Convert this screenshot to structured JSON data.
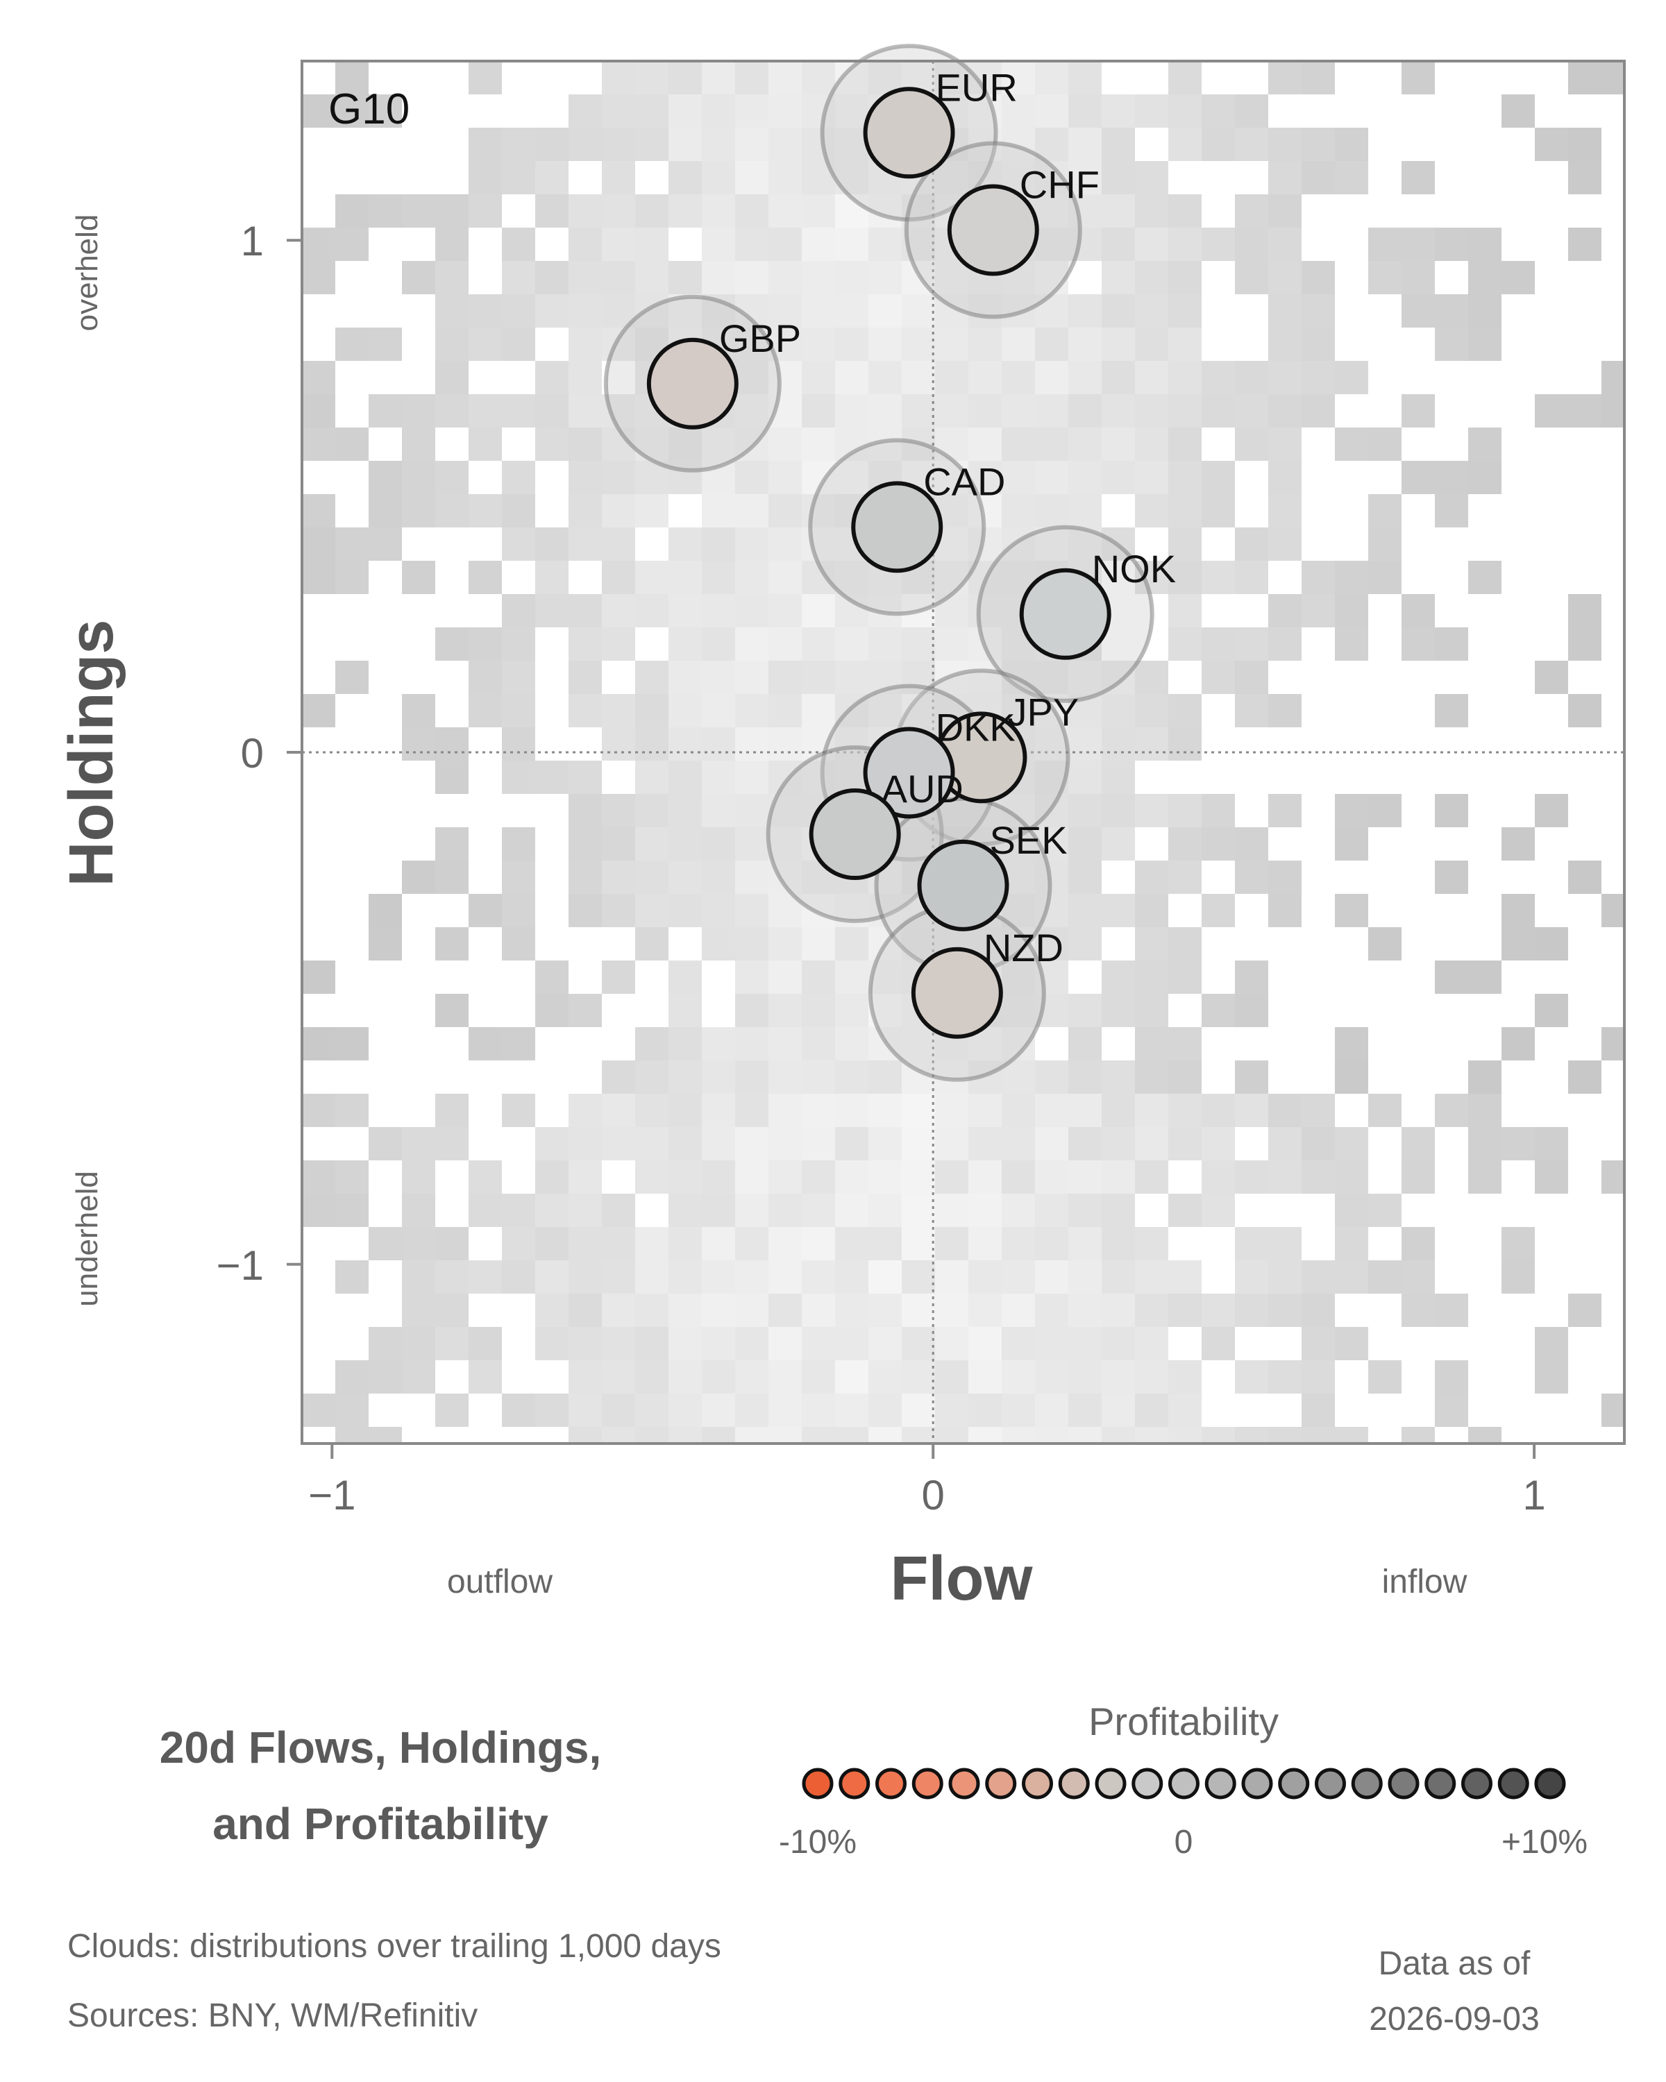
{
  "chart_data": {
    "type": "scatter",
    "panel_label": "G10",
    "xlabel": "Flow",
    "ylabel": "Holdings",
    "x_side_labels": {
      "low": "outflow",
      "high": "inflow"
    },
    "y_side_labels": {
      "high": "overheld",
      "low": "underheld"
    },
    "xlim": [
      -1.05,
      1.15
    ],
    "ylim": [
      -1.35,
      1.35
    ],
    "x_ticks": [
      {
        "value": -1,
        "label": "−1"
      },
      {
        "value": 0,
        "label": "0"
      },
      {
        "value": 1,
        "label": "1"
      }
    ],
    "y_ticks": [
      {
        "value": 1,
        "label": "1"
      },
      {
        "value": 0,
        "label": "0"
      },
      {
        "value": -1,
        "label": "−1"
      }
    ],
    "reference_lines": {
      "x": 0,
      "y": 0,
      "style": "dotted"
    },
    "background": "gray 2D-histogram density clouds of trailing 1,000-day distributions",
    "points": [
      {
        "label": "EUR",
        "x": -0.04,
        "y": 1.21,
        "fill": "#d1ccc8"
      },
      {
        "label": "CHF",
        "x": 0.1,
        "y": 1.02,
        "fill": "#d2d1cf"
      },
      {
        "label": "GBP",
        "x": -0.4,
        "y": 0.72,
        "fill": "#d4cbc6"
      },
      {
        "label": "CAD",
        "x": -0.06,
        "y": 0.44,
        "fill": "#c9cbcb"
      },
      {
        "label": "NOK",
        "x": 0.22,
        "y": 0.27,
        "fill": "#cdd0d0"
      },
      {
        "label": "JPY",
        "x": 0.08,
        "y": -0.01,
        "fill": "#d2ccc7"
      },
      {
        "label": "DKK",
        "x": -0.04,
        "y": -0.04,
        "fill": "#cbcdce"
      },
      {
        "label": "AUD",
        "x": -0.13,
        "y": -0.16,
        "fill": "#c9cbcb"
      },
      {
        "label": "SEK",
        "x": 0.05,
        "y": -0.26,
        "fill": "#c4c7c7"
      },
      {
        "label": "NZD",
        "x": 0.04,
        "y": -0.47,
        "fill": "#d3cbc5"
      }
    ],
    "legend": {
      "title": "Profitability",
      "min_label": "-10%",
      "mid_label": "0",
      "max_label": "+10%",
      "colors": [
        "#ec5f35",
        "#ee6b43",
        "#ef7752",
        "#ee8565",
        "#eb9478",
        "#e3a28b",
        "#dab09f",
        "#d2bcb1",
        "#cdc7c2",
        "#c9c9c9",
        "#c0c0c0",
        "#b6b6b6",
        "#ababab",
        "#a0a0a0",
        "#949494",
        "#888888",
        "#7b7b7b",
        "#6e6e6e",
        "#616161",
        "#535353",
        "#454545"
      ]
    }
  },
  "title_lines": [
    "20d Flows, Holdings,",
    "and Profitability"
  ],
  "footnotes": {
    "clouds": "Clouds:  distributions over trailing 1,000 days",
    "sources": "Sources:  BNY, WM/Refinitiv"
  },
  "as_of": {
    "line1": "Data as of",
    "line2": "2026-09-03"
  }
}
